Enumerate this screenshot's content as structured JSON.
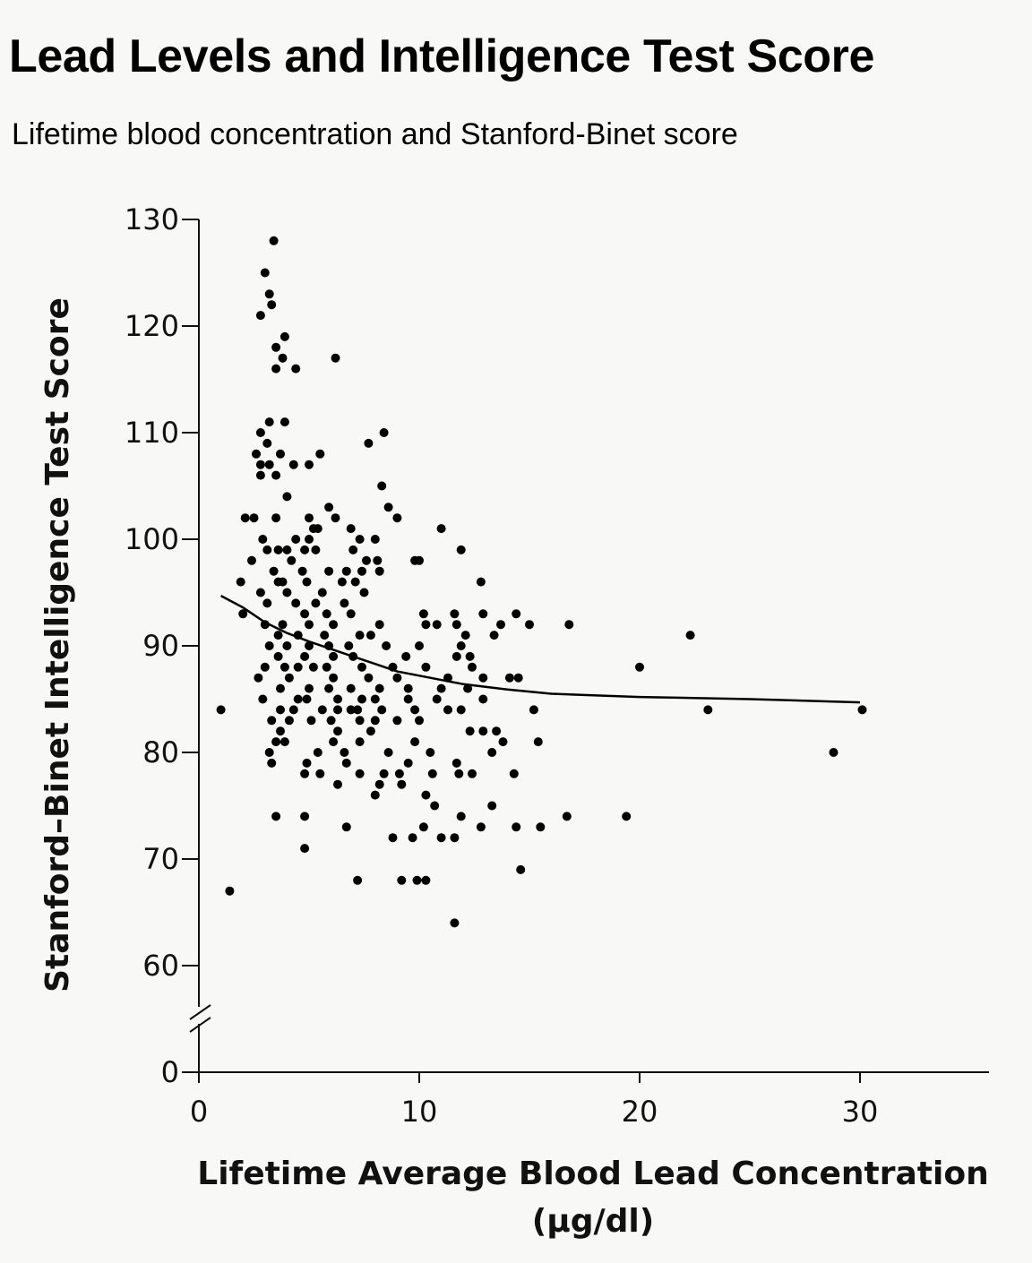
{
  "title": "Lead Levels and Intelligence Test Score",
  "subtitle": "Lifetime blood concentration and Stanford-Binet score",
  "colors": {
    "background": "#f8f8f7",
    "points": "#000000",
    "axis": "#111111"
  },
  "chart_data": {
    "type": "scatter",
    "xlabel_line1": "Lifetime Average Blood Lead Concentration",
    "xlabel_line2": "(µg/dl)",
    "ylabel": "Stanford–Binet Intelligence Test Score",
    "xlim": [
      0,
      36
    ],
    "ylim": [
      0,
      130
    ],
    "y_axis_break": "between 0 and 60",
    "x_ticks": [
      0,
      10,
      20,
      30
    ],
    "y_ticks": [
      0,
      60,
      70,
      80,
      90,
      100,
      110,
      120,
      130
    ],
    "grid": false,
    "legend": "none",
    "points": [
      [
        3.4,
        128
      ],
      [
        3.0,
        125
      ],
      [
        3.2,
        123
      ],
      [
        3.3,
        122
      ],
      [
        2.8,
        121
      ],
      [
        3.9,
        119
      ],
      [
        3.5,
        118
      ],
      [
        3.8,
        117
      ],
      [
        6.2,
        117
      ],
      [
        3.5,
        116
      ],
      [
        4.4,
        116
      ],
      [
        3.2,
        111
      ],
      [
        3.9,
        111
      ],
      [
        2.8,
        110
      ],
      [
        8.4,
        110
      ],
      [
        3.1,
        109
      ],
      [
        7.7,
        109
      ],
      [
        2.6,
        108
      ],
      [
        3.7,
        108
      ],
      [
        5.5,
        108
      ],
      [
        2.8,
        107
      ],
      [
        3.2,
        107
      ],
      [
        4.3,
        107
      ],
      [
        5.0,
        107
      ],
      [
        2.8,
        106
      ],
      [
        3.5,
        106
      ],
      [
        8.3,
        105
      ],
      [
        4.0,
        104
      ],
      [
        5.9,
        103
      ],
      [
        8.6,
        103
      ],
      [
        2.1,
        102
      ],
      [
        2.5,
        102
      ],
      [
        3.5,
        102
      ],
      [
        5.0,
        102
      ],
      [
        6.2,
        102
      ],
      [
        9.0,
        102
      ],
      [
        5.2,
        101
      ],
      [
        5.4,
        101
      ],
      [
        6.9,
        101
      ],
      [
        11.0,
        101
      ],
      [
        2.9,
        100
      ],
      [
        4.4,
        100
      ],
      [
        5.0,
        100
      ],
      [
        7.3,
        100
      ],
      [
        8.0,
        100
      ],
      [
        3.1,
        99
      ],
      [
        3.6,
        99
      ],
      [
        4.0,
        99
      ],
      [
        4.8,
        99
      ],
      [
        5.3,
        99
      ],
      [
        7.0,
        99
      ],
      [
        11.9,
        99
      ],
      [
        2.4,
        98
      ],
      [
        4.2,
        98
      ],
      [
        7.6,
        98
      ],
      [
        8.1,
        98
      ],
      [
        9.8,
        98
      ],
      [
        10.0,
        98
      ],
      [
        3.4,
        97
      ],
      [
        4.7,
        97
      ],
      [
        5.9,
        97
      ],
      [
        6.7,
        97
      ],
      [
        7.4,
        97
      ],
      [
        8.2,
        97
      ],
      [
        1.9,
        96
      ],
      [
        3.6,
        96
      ],
      [
        3.8,
        96
      ],
      [
        4.9,
        96
      ],
      [
        6.5,
        96
      ],
      [
        7.1,
        96
      ],
      [
        12.8,
        96
      ],
      [
        2.8,
        95
      ],
      [
        4.0,
        95
      ],
      [
        5.6,
        95
      ],
      [
        7.5,
        95
      ],
      [
        3.1,
        94
      ],
      [
        4.4,
        94
      ],
      [
        5.3,
        94
      ],
      [
        6.6,
        94
      ],
      [
        2.0,
        93
      ],
      [
        4.8,
        93
      ],
      [
        5.8,
        93
      ],
      [
        6.9,
        93
      ],
      [
        10.2,
        93
      ],
      [
        11.6,
        93
      ],
      [
        12.9,
        93
      ],
      [
        14.4,
        93
      ],
      [
        3.0,
        92
      ],
      [
        3.8,
        92
      ],
      [
        5.0,
        92
      ],
      [
        6.1,
        92
      ],
      [
        8.2,
        92
      ],
      [
        10.3,
        92
      ],
      [
        10.8,
        92
      ],
      [
        11.7,
        92
      ],
      [
        13.7,
        92
      ],
      [
        15.0,
        92
      ],
      [
        16.8,
        92
      ],
      [
        3.6,
        91
      ],
      [
        4.5,
        91
      ],
      [
        5.7,
        91
      ],
      [
        7.3,
        91
      ],
      [
        7.8,
        91
      ],
      [
        12.1,
        91
      ],
      [
        13.4,
        91
      ],
      [
        22.3,
        91
      ],
      [
        3.2,
        90
      ],
      [
        4.0,
        90
      ],
      [
        5.0,
        90
      ],
      [
        5.9,
        90
      ],
      [
        6.8,
        90
      ],
      [
        8.5,
        90
      ],
      [
        10.0,
        90
      ],
      [
        11.9,
        90
      ],
      [
        3.6,
        89
      ],
      [
        4.8,
        89
      ],
      [
        6.1,
        89
      ],
      [
        7.0,
        89
      ],
      [
        9.4,
        89
      ],
      [
        11.7,
        89
      ],
      [
        12.3,
        89
      ],
      [
        3.0,
        88
      ],
      [
        3.9,
        88
      ],
      [
        4.5,
        88
      ],
      [
        5.2,
        88
      ],
      [
        5.8,
        88
      ],
      [
        7.4,
        88
      ],
      [
        8.8,
        88
      ],
      [
        10.3,
        88
      ],
      [
        12.4,
        88
      ],
      [
        20.0,
        88
      ],
      [
        2.7,
        87
      ],
      [
        4.1,
        87
      ],
      [
        6.1,
        87
      ],
      [
        7.7,
        87
      ],
      [
        9.0,
        87
      ],
      [
        11.3,
        87
      ],
      [
        12.9,
        87
      ],
      [
        14.1,
        87
      ],
      [
        14.5,
        87
      ],
      [
        3.7,
        86
      ],
      [
        5.0,
        86
      ],
      [
        5.9,
        86
      ],
      [
        6.9,
        86
      ],
      [
        8.2,
        86
      ],
      [
        9.5,
        86
      ],
      [
        11.0,
        86
      ],
      [
        12.2,
        86
      ],
      [
        2.9,
        85
      ],
      [
        4.5,
        85
      ],
      [
        4.9,
        85
      ],
      [
        6.3,
        85
      ],
      [
        7.4,
        85
      ],
      [
        8.0,
        85
      ],
      [
        9.5,
        85
      ],
      [
        10.8,
        85
      ],
      [
        12.9,
        85
      ],
      [
        1.0,
        84
      ],
      [
        3.7,
        84
      ],
      [
        4.3,
        84
      ],
      [
        5.6,
        84
      ],
      [
        6.3,
        84
      ],
      [
        6.9,
        84
      ],
      [
        7.2,
        84
      ],
      [
        8.3,
        84
      ],
      [
        9.8,
        84
      ],
      [
        11.3,
        84
      ],
      [
        11.9,
        84
      ],
      [
        15.2,
        84
      ],
      [
        23.1,
        84
      ],
      [
        30.1,
        84
      ],
      [
        3.3,
        83
      ],
      [
        4.1,
        83
      ],
      [
        5.1,
        83
      ],
      [
        6.0,
        83
      ],
      [
        7.3,
        83
      ],
      [
        8.0,
        83
      ],
      [
        9.0,
        83
      ],
      [
        10.0,
        83
      ],
      [
        3.7,
        82
      ],
      [
        6.3,
        82
      ],
      [
        7.8,
        82
      ],
      [
        12.3,
        82
      ],
      [
        12.9,
        82
      ],
      [
        13.5,
        82
      ],
      [
        3.5,
        81
      ],
      [
        3.9,
        81
      ],
      [
        6.1,
        81
      ],
      [
        7.3,
        81
      ],
      [
        9.8,
        81
      ],
      [
        13.8,
        81
      ],
      [
        15.4,
        81
      ],
      [
        3.2,
        80
      ],
      [
        5.4,
        80
      ],
      [
        6.6,
        80
      ],
      [
        8.6,
        80
      ],
      [
        10.5,
        80
      ],
      [
        13.3,
        80
      ],
      [
        28.8,
        80
      ],
      [
        3.3,
        79
      ],
      [
        4.9,
        79
      ],
      [
        6.7,
        79
      ],
      [
        9.5,
        79
      ],
      [
        11.7,
        79
      ],
      [
        4.8,
        78
      ],
      [
        5.5,
        78
      ],
      [
        7.3,
        78
      ],
      [
        8.4,
        78
      ],
      [
        9.1,
        78
      ],
      [
        10.6,
        78
      ],
      [
        11.8,
        78
      ],
      [
        12.4,
        78
      ],
      [
        14.3,
        78
      ],
      [
        6.3,
        77
      ],
      [
        8.2,
        77
      ],
      [
        9.2,
        77
      ],
      [
        8.0,
        76
      ],
      [
        10.3,
        76
      ],
      [
        10.7,
        75
      ],
      [
        13.3,
        75
      ],
      [
        3.5,
        74
      ],
      [
        4.8,
        74
      ],
      [
        11.9,
        74
      ],
      [
        16.7,
        74
      ],
      [
        19.4,
        74
      ],
      [
        6.7,
        73
      ],
      [
        10.2,
        73
      ],
      [
        12.8,
        73
      ],
      [
        14.4,
        73
      ],
      [
        15.5,
        73
      ],
      [
        8.8,
        72
      ],
      [
        9.7,
        72
      ],
      [
        11.0,
        72
      ],
      [
        11.6,
        72
      ],
      [
        4.8,
        71
      ],
      [
        14.6,
        69
      ],
      [
        7.2,
        68
      ],
      [
        9.2,
        68
      ],
      [
        9.9,
        68
      ],
      [
        10.3,
        68
      ],
      [
        1.4,
        67
      ],
      [
        11.6,
        64
      ]
    ],
    "trend_line": [
      [
        1.0,
        94.7
      ],
      [
        2.0,
        93.6
      ],
      [
        3.0,
        92.2
      ],
      [
        4.0,
        91.2
      ],
      [
        5.0,
        90.4
      ],
      [
        6.0,
        89.7
      ],
      [
        7.0,
        89.0
      ],
      [
        8.0,
        88.3
      ],
      [
        9.0,
        87.6
      ],
      [
        10.0,
        87.2
      ],
      [
        12.0,
        86.4
      ],
      [
        14.0,
        85.9
      ],
      [
        16.0,
        85.5
      ],
      [
        20.0,
        85.2
      ],
      [
        25.0,
        85.0
      ],
      [
        30.0,
        84.7
      ]
    ]
  }
}
